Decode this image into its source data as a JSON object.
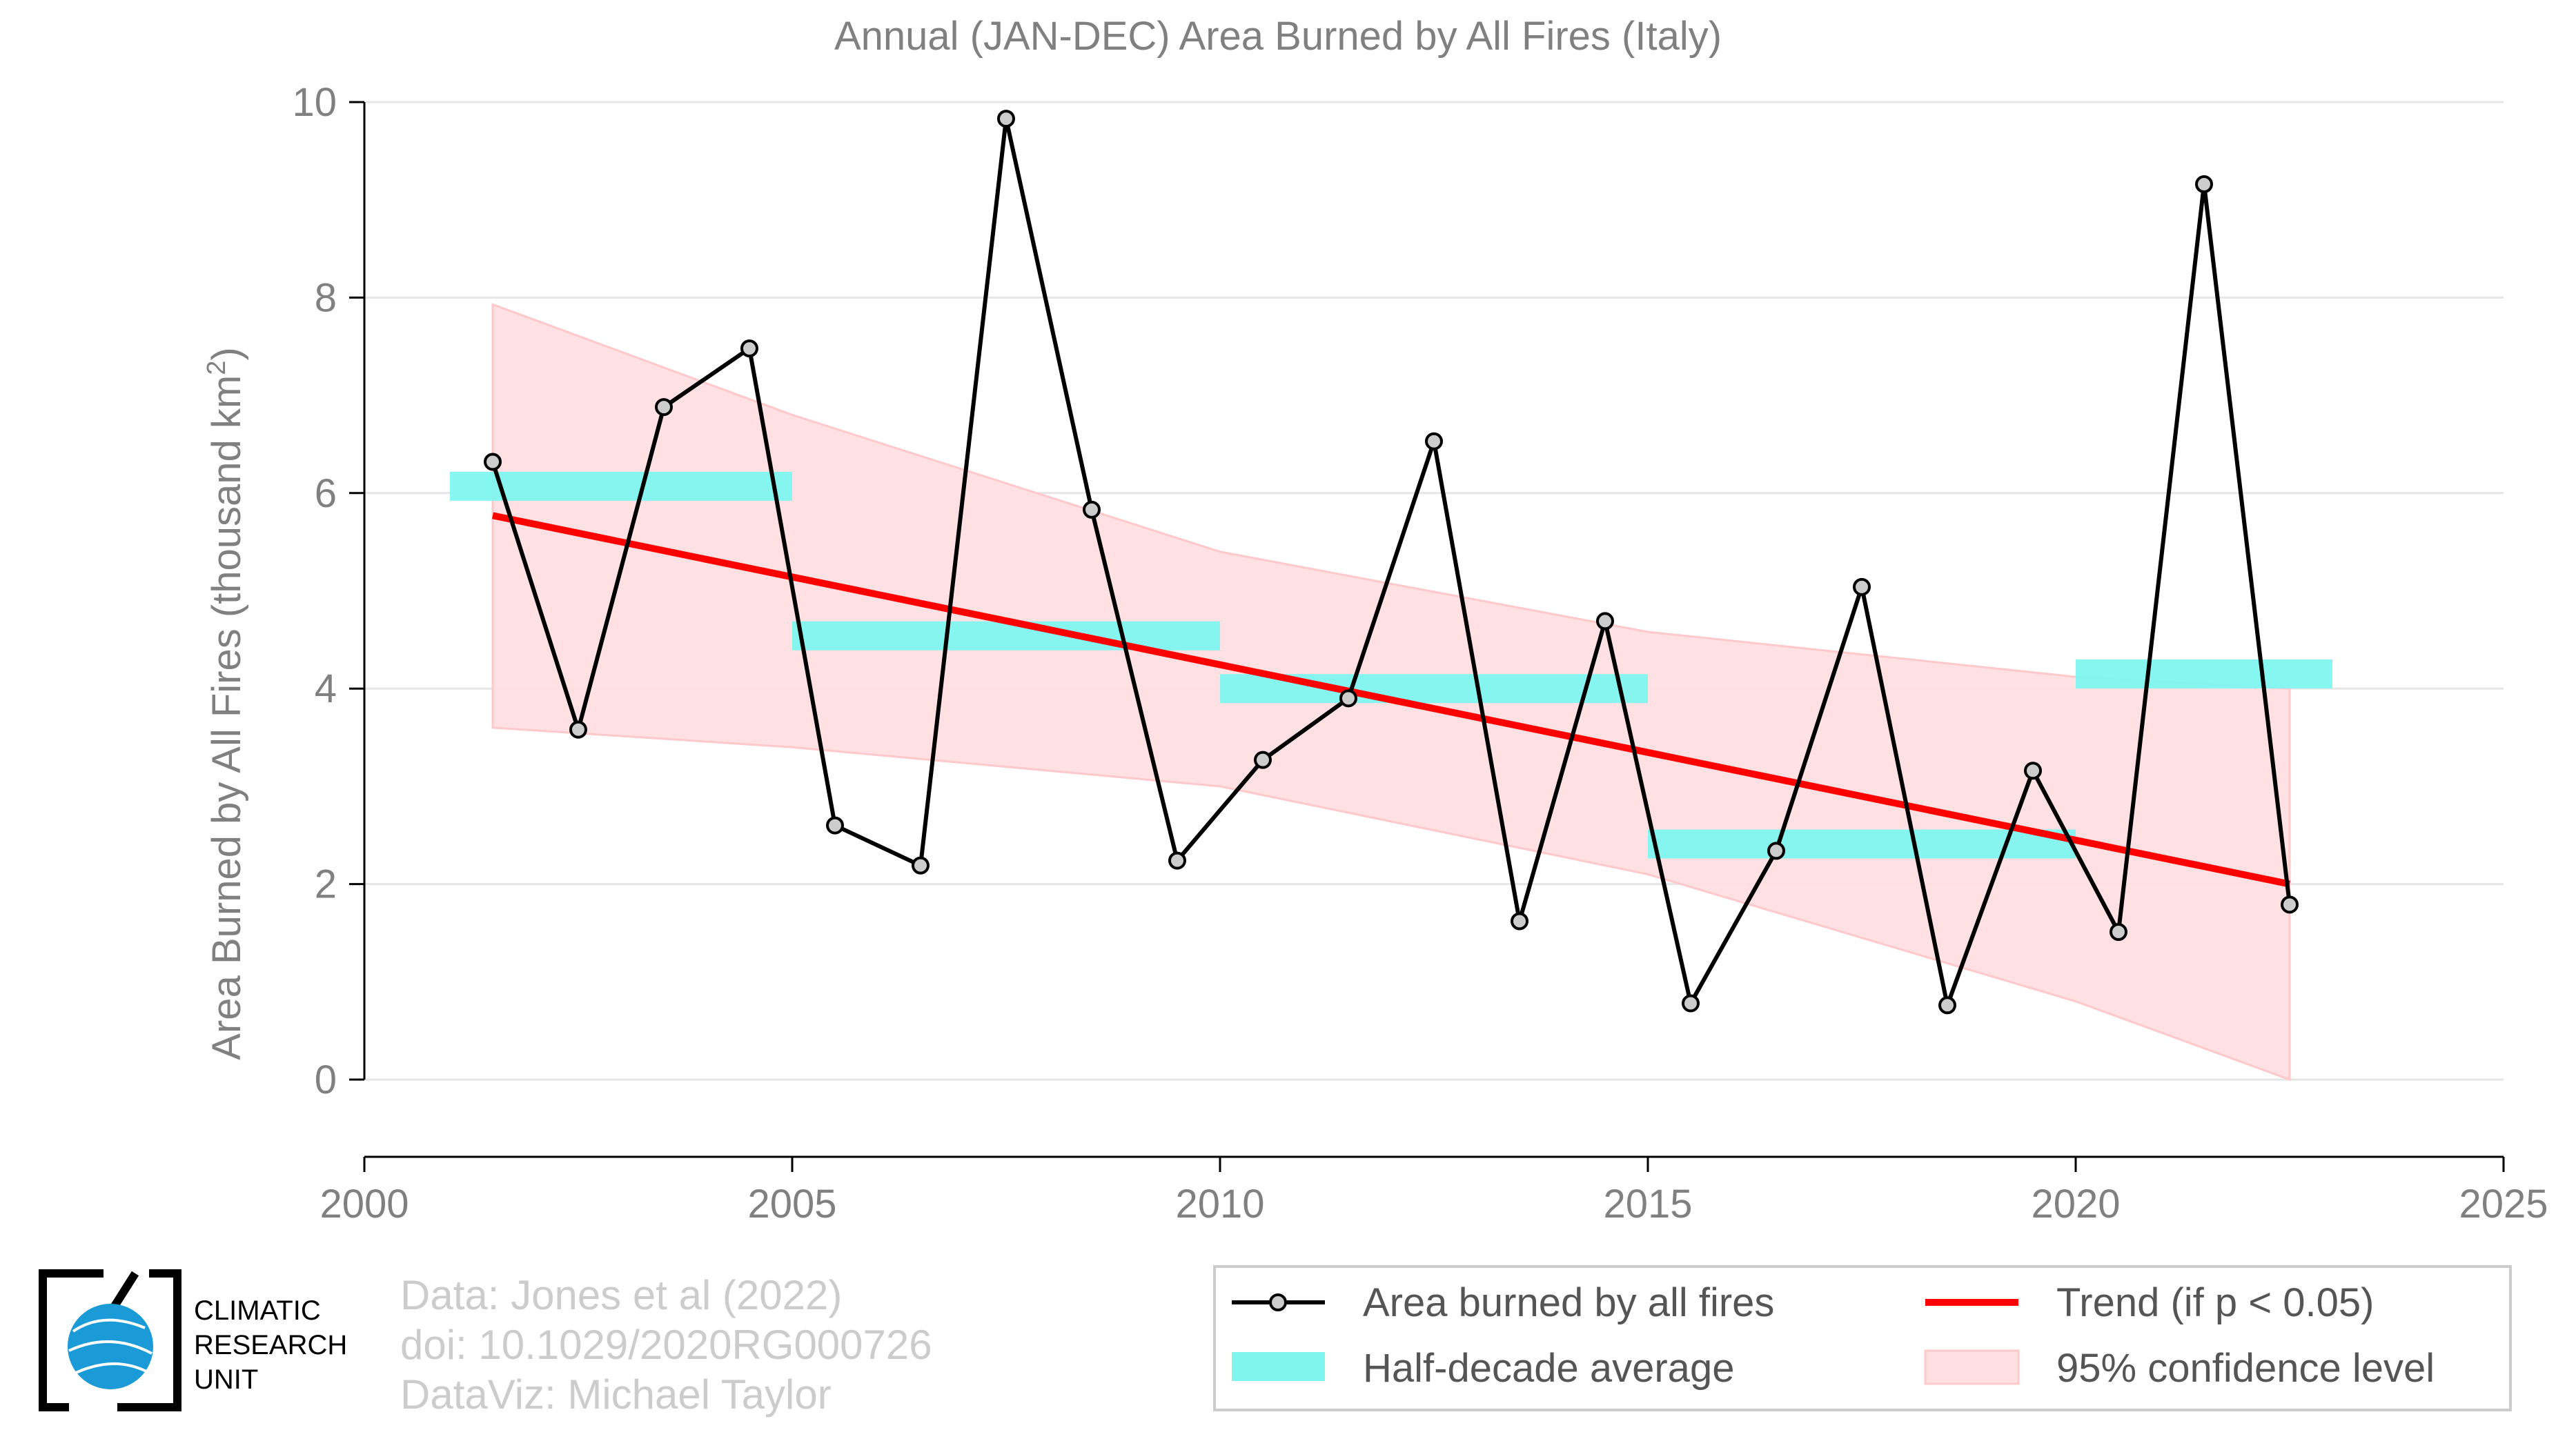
{
  "chart_data": {
    "type": "line",
    "title": "Annual (JAN-DEC) Area Burned by All Fires (Italy)",
    "xlabel": "",
    "ylabel": "Area Burned by All Fires (thousand km",
    "ylabel_superscript": "2",
    "ylabel_suffix": ")",
    "xlim": [
      2000,
      2025
    ],
    "ylim": [
      0,
      10
    ],
    "xticks": [
      2000,
      2005,
      2010,
      2015,
      2020,
      2025
    ],
    "yticks": [
      0,
      2,
      4,
      6,
      8,
      10
    ],
    "grid": true,
    "series": [
      {
        "name": "Area burned by all fires",
        "color": "#000000",
        "marker_color": "#cccccc",
        "x": [
          2001.5,
          2002.5,
          2003.5,
          2004.5,
          2005.5,
          2006.5,
          2007.5,
          2008.5,
          2009.5,
          2010.5,
          2011.5,
          2012.5,
          2013.5,
          2014.5,
          2015.5,
          2016.5,
          2017.5,
          2018.5,
          2019.5,
          2020.5,
          2021.5,
          2022.5
        ],
        "values": [
          6.32,
          3.58,
          6.88,
          7.48,
          2.6,
          2.19,
          9.83,
          5.83,
          2.24,
          3.27,
          3.9,
          6.53,
          1.62,
          4.69,
          0.78,
          2.34,
          5.04,
          0.76,
          3.16,
          1.51,
          9.16,
          1.79
        ]
      },
      {
        "name": "Half-decade average",
        "color": "#7ff5f0",
        "segments": [
          {
            "x0": 2001,
            "x1": 2005,
            "value": 6.07
          },
          {
            "x0": 2005,
            "x1": 2010,
            "value": 4.54
          },
          {
            "x0": 2010,
            "x1": 2015,
            "value": 4.0
          },
          {
            "x0": 2015,
            "x1": 2020,
            "value": 2.41
          },
          {
            "x0": 2020,
            "x1": 2023,
            "value": 4.15
          }
        ]
      },
      {
        "name": "Trend (if p < 0.05)",
        "color": "#ff0000",
        "x": [
          2001.5,
          2022.5
        ],
        "values": [
          5.77,
          2.0
        ]
      },
      {
        "name": "95% confidence level",
        "color": "#ffd9db",
        "x": [
          2001.5,
          2005,
          2010,
          2015,
          2020,
          2022.5
        ],
        "upper": [
          7.93,
          6.8,
          5.4,
          4.58,
          4.12,
          4.0
        ],
        "lower": [
          3.6,
          3.4,
          3.0,
          2.1,
          0.8,
          0.0
        ]
      }
    ],
    "legend_entries": [
      "Area burned by all fires",
      "Half-decade average",
      "Trend (if p < 0.05)",
      "95% confidence level"
    ],
    "legend_position": "bottom-right"
  },
  "credits": {
    "line1": "Data: Jones et al (2022)",
    "line2": "doi: 10.1029/2020RG000726",
    "line3": "DataViz: Michael Taylor"
  },
  "logo": {
    "line1": "CLIMATIC",
    "line2": "RESEARCH",
    "line3": "UNIT",
    "globe_color": "#1a9ad6"
  }
}
